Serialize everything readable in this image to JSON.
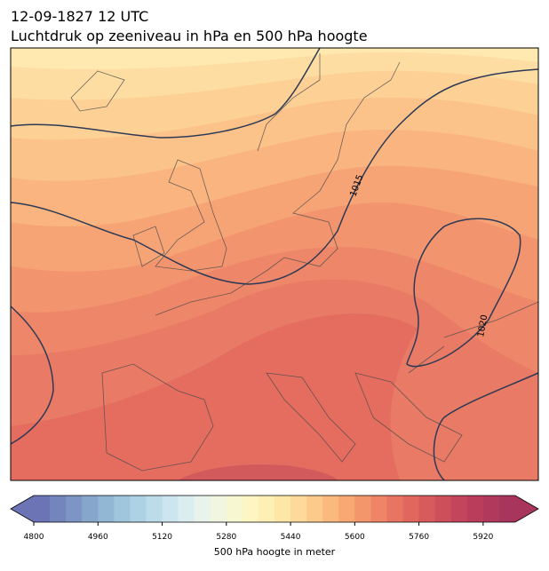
{
  "header": {
    "title": "12-09-1827 12 UTC",
    "subtitle": "Luchtdruk op zeeniveau in hPa en 500 hPa hoogte"
  },
  "isobar_labels": [
    "1015",
    "1020"
  ],
  "colorbar": {
    "label": "500 hPa hoogte in meter",
    "lim": [
      4800,
      6000
    ],
    "ticks": [
      4800,
      4960,
      5120,
      5280,
      5440,
      5600,
      5760,
      5920
    ],
    "colors": [
      "#6c74b6",
      "#7485bd",
      "#7c95c4",
      "#86a6cc",
      "#92b7d4",
      "#9fc6dc",
      "#acd2e4",
      "#bcdcea",
      "#cde5ef",
      "#dcedf0",
      "#e8f3ec",
      "#f0f6e0",
      "#f7f8d2",
      "#fdf6c2",
      "#fef0b4",
      "#fee6a6",
      "#fdda9a",
      "#fcca8b",
      "#fbba7d",
      "#f8a873",
      "#f4966c",
      "#ef8566",
      "#e87562",
      "#e0665e",
      "#d75a5c",
      "#cd4f5b",
      "#c3455c",
      "#ba3e5c",
      "#b13a5c",
      "#a8355b"
    ]
  }
}
